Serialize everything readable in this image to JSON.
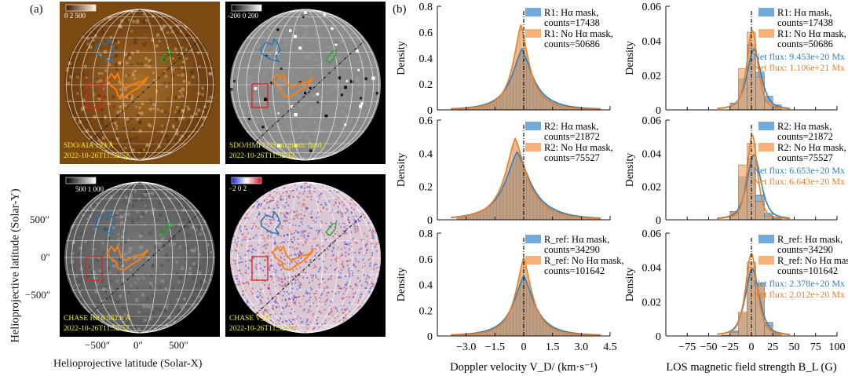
{
  "figure": {
    "panel_a_label": "(a)",
    "panel_b_label": "(b)",
    "y_axis_label": "Helioprojective latitude (Solar-Y)",
    "x_axis_label": "Helioprojective latitude (Solar-X)",
    "y_ticks": [
      "500″",
      "0″",
      "−500″"
    ],
    "x_ticks": [
      "−500″",
      "0″",
      "500″"
    ]
  },
  "images": [
    {
      "id": "aia",
      "caption_line1": "SDO/AIA 193 Å",
      "caption_line2": "2022-10-26T11:52:52",
      "colorbar_labels": "0      2 500",
      "colormap": "sdoaia193"
    },
    {
      "id": "hmi",
      "caption_line1": "SDO/HMI LOS magnetic field",
      "caption_line2": "2022-10-26T11:52:12",
      "colorbar_labels": "-200  0  200",
      "colormap": "gray"
    },
    {
      "id": "halpha",
      "caption_line1": "CHASE Hα 6 562.8 Å",
      "caption_line2": "2022-10-26T11:52:52",
      "colorbar_labels": "500 1 000",
      "colormap": "gray"
    },
    {
      "id": "vd",
      "caption_line1": "CHASE V_D",
      "caption_line2": "2022-10-26T11:52:52",
      "colorbar_labels": "−2   0   2",
      "colormap": "bwr"
    }
  ],
  "region_colors": {
    "R1": "#1f77b4",
    "R2": "#ff7f0e",
    "Rref": "#d62728",
    "other": "#2ca02c"
  },
  "colors": {
    "mask": "#5b9bd5",
    "nomask": "#f4a460",
    "mask_line": "#2e7fc0",
    "nomask_line": "#ef7d22",
    "overlap": "#c08a5c"
  },
  "chart_data": [
    {
      "type": "bar",
      "id": "vd-r1",
      "column": "doppler",
      "ylabel": "Density",
      "xlabel": "",
      "xlim": [
        -4.5,
        4.5
      ],
      "ylim": [
        0,
        0.8
      ],
      "yticks": [
        "0",
        "0.2",
        "0.4",
        "0.6",
        "0.8"
      ],
      "legend": [
        {
          "label": "R1: Hα mask,",
          "sub": "counts=17438"
        },
        {
          "label": "R1: No Hα mask,",
          "sub": "counts=50686"
        }
      ],
      "series": [
        {
          "name": "R1: Hα mask",
          "peak": 0.47,
          "center": -0.1,
          "width": 0.85,
          "skew": 0.25
        },
        {
          "name": "R1: No Hα mask",
          "peak": 0.66,
          "center": -0.15,
          "width": 0.65,
          "skew": 0.15
        }
      ],
      "legend_position": "top-right"
    },
    {
      "type": "bar",
      "id": "vd-r2",
      "column": "doppler",
      "ylabel": "Density",
      "xlabel": "",
      "xlim": [
        -4.5,
        4.5
      ],
      "ylim": [
        0,
        0.6
      ],
      "yticks": [
        "0",
        "0.2",
        "0.4",
        "0.6"
      ],
      "legend": [
        {
          "label": "R2: Hα mask,",
          "sub": "counts=21872"
        },
        {
          "label": "R2: No Hα mask,",
          "sub": "counts=75527"
        }
      ],
      "series": [
        {
          "name": "R2: Hα mask",
          "peak": 0.41,
          "center": -0.35,
          "width": 1.0,
          "skew": 0.4
        },
        {
          "name": "R2: No Hα mask",
          "peak": 0.49,
          "center": -0.45,
          "width": 0.85,
          "skew": 0.45
        }
      ],
      "legend_position": "top-right"
    },
    {
      "type": "bar",
      "id": "vd-rref",
      "column": "doppler",
      "ylabel": "Density",
      "xlabel": "Doppler velocity V_D/ (km·s⁻¹)",
      "xlim": [
        -4.5,
        4.5
      ],
      "ylim": [
        0,
        0.8
      ],
      "yticks": [
        "0",
        "0.2",
        "0.4",
        "0.6",
        "0.8"
      ],
      "xticks": [
        "−3.0",
        "−1.5",
        "0",
        "1.5",
        "3.0",
        "4.5"
      ],
      "legend": [
        {
          "label": "R_ref: Hα mask,",
          "sub": "counts=34290"
        },
        {
          "label": "R_ref: No Hα mask,",
          "sub": "counts=101642"
        }
      ],
      "series": [
        {
          "name": "R_ref: Hα mask",
          "peak": 0.47,
          "center": 0.0,
          "width": 0.85,
          "skew": 0.1
        },
        {
          "name": "R_ref: No Hα mask",
          "peak": 0.61,
          "center": 0.0,
          "width": 0.68,
          "skew": 0.05
        }
      ],
      "legend_position": "top-right"
    },
    {
      "type": "bar",
      "id": "bl-r1",
      "column": "field",
      "ylabel": "Density",
      "xlabel": "",
      "xlim": [
        -100,
        100
      ],
      "ylim": [
        0,
        0.06
      ],
      "yticks": [
        "0",
        "0.02",
        "0.04",
        "0.06"
      ],
      "legend": [
        {
          "label": "R1: Hα mask,",
          "sub": "counts=17438"
        },
        {
          "label": "R1: No Hα mask,",
          "sub": "counts=50686"
        }
      ],
      "netflux": [
        {
          "text": "Net flux: 9.453e+20 Mx"
        },
        {
          "text": "Net flux: 1.106e+21 Mx"
        }
      ],
      "bins": [
        -25,
        -15,
        -5,
        5,
        15,
        25,
        35
      ],
      "series": [
        {
          "name": "R1: Hα mask",
          "hist": [
            0.004,
            0.018,
            0.038,
            0.022,
            0.008,
            0.003
          ],
          "kde_peak": 0.035,
          "kde_center": 3,
          "kde_width": 9
        },
        {
          "name": "R1: No Hα mask",
          "hist": [
            0.004,
            0.024,
            0.045,
            0.019,
            0.005,
            0.001
          ],
          "kde_peak": 0.046,
          "kde_center": 1,
          "kde_width": 7
        }
      ],
      "legend_position": "top-right"
    },
    {
      "type": "bar",
      "id": "bl-r2",
      "column": "field",
      "ylabel": "Density",
      "xlabel": "",
      "xlim": [
        -100,
        100
      ],
      "ylim": [
        0,
        0.06
      ],
      "yticks": [
        "0",
        "0.02",
        "0.04",
        "0.06"
      ],
      "legend": [
        {
          "label": "R2: Hα mask,",
          "sub": "counts=21872"
        },
        {
          "label": "R2: No Hα mask,",
          "sub": "counts=75527"
        }
      ],
      "netflux": [
        {
          "text": "Net flux: 6.653e+20 Mx"
        },
        {
          "text": "Net flux: 6.643e+20 Mx"
        }
      ],
      "bins": [
        -25,
        -15,
        -5,
        5,
        15,
        25,
        35
      ],
      "series": [
        {
          "name": "R2: Hα mask",
          "hist": [
            0.005,
            0.026,
            0.037,
            0.015,
            0.004,
            0.001
          ],
          "kde_peak": 0.039,
          "kde_center": 3,
          "kde_width": 9
        },
        {
          "name": "R2: No Hα mask",
          "hist": [
            0.005,
            0.033,
            0.046,
            0.011,
            0.002,
            0.0005
          ],
          "kde_peak": 0.051,
          "kde_center": 1,
          "kde_width": 6.5
        }
      ],
      "legend_position": "top-right"
    },
    {
      "type": "bar",
      "id": "bl-rref",
      "column": "field",
      "ylabel": "Density",
      "xlabel": "LOS magnetic field strength B_L (G)",
      "xlim": [
        -75,
        100
      ],
      "ylim": [
        0,
        0.06
      ],
      "yticks": [
        "0",
        "0.02",
        "0.04",
        "0.06"
      ],
      "xticks": [
        "−75",
        "−50",
        "−25",
        "0",
        "25",
        "50",
        "75",
        "100"
      ],
      "legend": [
        {
          "label": "R_ref: Hα mask,",
          "sub": "counts=34290"
        },
        {
          "label": "R_ref: No Hα mask,",
          "sub": "counts=101642"
        }
      ],
      "netflux": [
        {
          "text": "Net flux: 2.378e+20 Mx"
        },
        {
          "text": "Net flux: 2.012e+20 Mx"
        }
      ],
      "bins": [
        -35,
        -25,
        -15,
        -5,
        5,
        15,
        25,
        35
      ],
      "series": [
        {
          "name": "R_ref: Hα mask",
          "hist": [
            0.0005,
            0.003,
            0.013,
            0.04,
            0.03,
            0.008,
            0.002
          ],
          "kde_peak": 0.039,
          "kde_center": 1,
          "kde_width": 9
        },
        {
          "name": "R_ref: No Hα mask",
          "hist": [
            0.0003,
            0.002,
            0.014,
            0.043,
            0.031,
            0.006,
            0.001
          ],
          "kde_peak": 0.048,
          "kde_center": 0,
          "kde_width": 7.5
        }
      ],
      "legend_position": "top-right"
    }
  ]
}
